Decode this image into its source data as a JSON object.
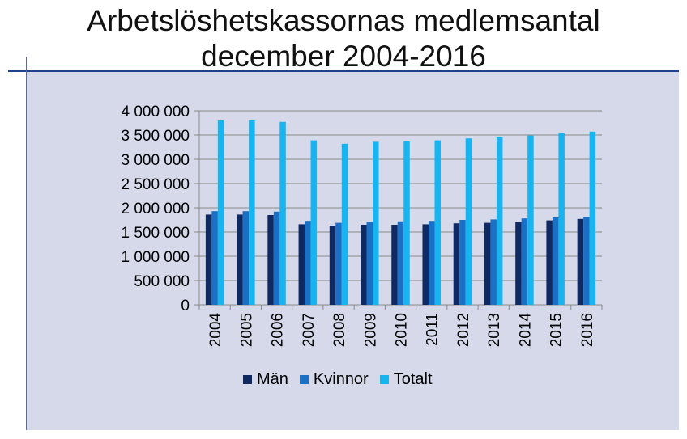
{
  "chart_data": {
    "type": "bar",
    "title_line1": "Arbetslöshetskassornas medlemsantal",
    "title_line2": "december 2004-2016",
    "categories": [
      "2004",
      "2005",
      "2006",
      "2007",
      "2008",
      "2009",
      "2010",
      "2011",
      "2012",
      "2013",
      "2014",
      "2015",
      "2016"
    ],
    "series": [
      {
        "name": "Män",
        "color": "#0f2a63",
        "values": [
          1860000,
          1860000,
          1850000,
          1660000,
          1630000,
          1650000,
          1650000,
          1660000,
          1680000,
          1690000,
          1710000,
          1740000,
          1770000
        ]
      },
      {
        "name": "Kvinnor",
        "color": "#1b6fc4",
        "values": [
          1930000,
          1930000,
          1920000,
          1730000,
          1690000,
          1710000,
          1720000,
          1730000,
          1750000,
          1760000,
          1780000,
          1800000,
          1810000
        ]
      },
      {
        "name": "Totalt",
        "color": "#18b4f0",
        "values": [
          3800000,
          3800000,
          3770000,
          3390000,
          3320000,
          3360000,
          3370000,
          3390000,
          3430000,
          3450000,
          3490000,
          3540000,
          3570000
        ]
      }
    ],
    "ylim": [
      0,
      4000000
    ],
    "yticks": [
      0,
      500000,
      1000000,
      1500000,
      2000000,
      2500000,
      3000000,
      3500000,
      4000000
    ],
    "ytick_labels": [
      "0",
      "500 000",
      "1 000 000",
      "1 500 000",
      "2 000 000",
      "2 500 000",
      "3 000 000",
      "3 500 000",
      "4 000 000"
    ],
    "grid": true,
    "legend_position": "bottom"
  }
}
